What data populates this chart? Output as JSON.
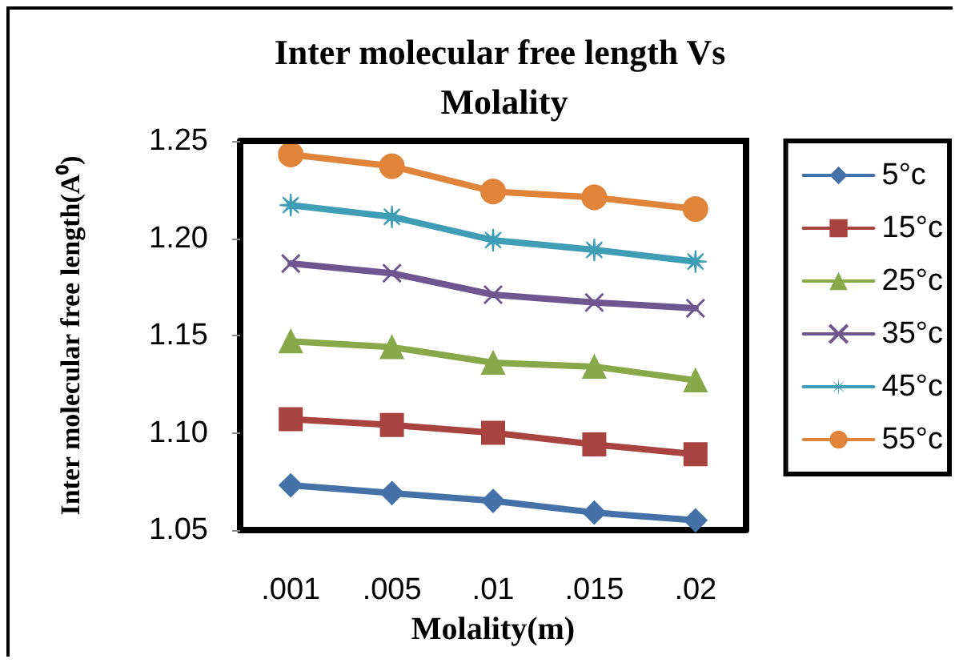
{
  "chart_data": {
    "type": "line",
    "title": "Inter molecular free length Vs Molality",
    "xlabel": "Molality(m)",
    "ylabel": "Inter molecular free length(A⁰)",
    "categories": [
      ".001",
      ".005",
      ".01",
      ".015",
      ".02"
    ],
    "ylim": [
      1.05,
      1.25
    ],
    "yticks": [
      {
        "value": 1.05,
        "label": "1.05"
      },
      {
        "value": 1.1,
        "label": "1.10"
      },
      {
        "value": 1.15,
        "label": "1.15"
      },
      {
        "value": 1.2,
        "label": "1.20"
      },
      {
        "value": 1.25,
        "label": "1.25"
      }
    ],
    "grid": false,
    "legend": "right",
    "series": [
      {
        "name": "5°c",
        "color": "#4472a8",
        "marker": "diamond",
        "values": [
          1.073,
          1.069,
          1.065,
          1.059,
          1.055
        ]
      },
      {
        "name": "15°c",
        "color": "#a9433f",
        "marker": "square",
        "values": [
          1.107,
          1.104,
          1.1,
          1.094,
          1.089
        ]
      },
      {
        "name": "25°c",
        "color": "#88a94a",
        "marker": "triangle",
        "values": [
          1.147,
          1.144,
          1.136,
          1.134,
          1.127
        ]
      },
      {
        "name": "35°c",
        "color": "#6f5690",
        "marker": "cross",
        "values": [
          1.187,
          1.182,
          1.171,
          1.167,
          1.164
        ]
      },
      {
        "name": "45°c",
        "color": "#3f9db6",
        "marker": "star",
        "values": [
          1.217,
          1.211,
          1.199,
          1.194,
          1.188
        ]
      },
      {
        "name": "55°c",
        "color": "#e0843a",
        "marker": "circle",
        "values": [
          1.243,
          1.237,
          1.224,
          1.221,
          1.215
        ]
      }
    ]
  }
}
